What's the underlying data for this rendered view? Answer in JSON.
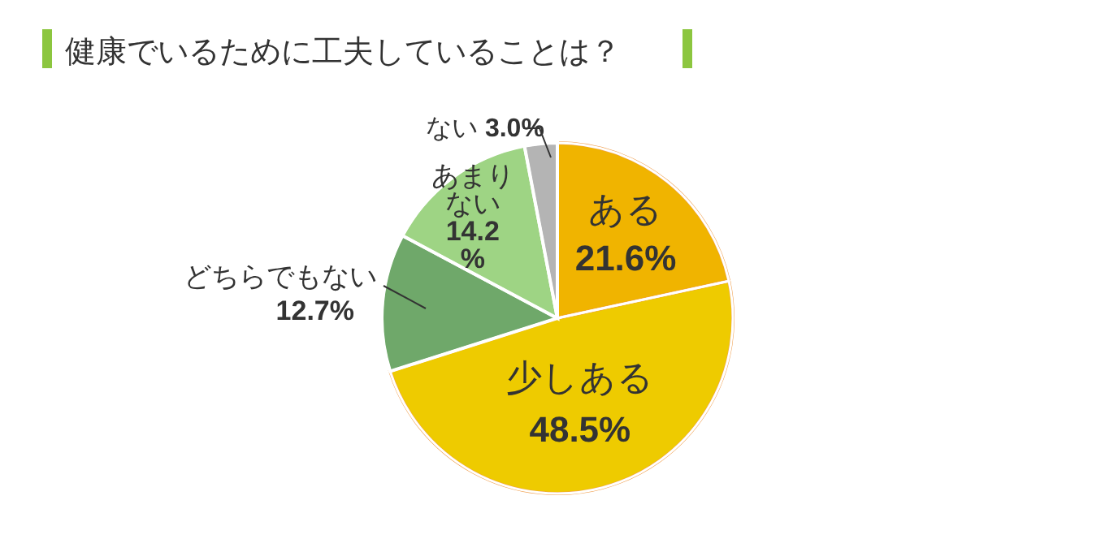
{
  "chart_data": {
    "type": "pie",
    "title": "健康でいるために工夫していることは？",
    "categories": [
      "ある",
      "少しある",
      "どちらでもない",
      "あまりない",
      "ない"
    ],
    "values": [
      21.6,
      48.5,
      12.7,
      14.2,
      3.0
    ],
    "colors": [
      "#f0b400",
      "#eecb00",
      "#6fa86a",
      "#9ed484",
      "#b4b4b4"
    ],
    "value_labels": [
      "21.6%",
      "48.5%",
      "12.7%",
      "14.2%",
      "3.0%"
    ]
  }
}
